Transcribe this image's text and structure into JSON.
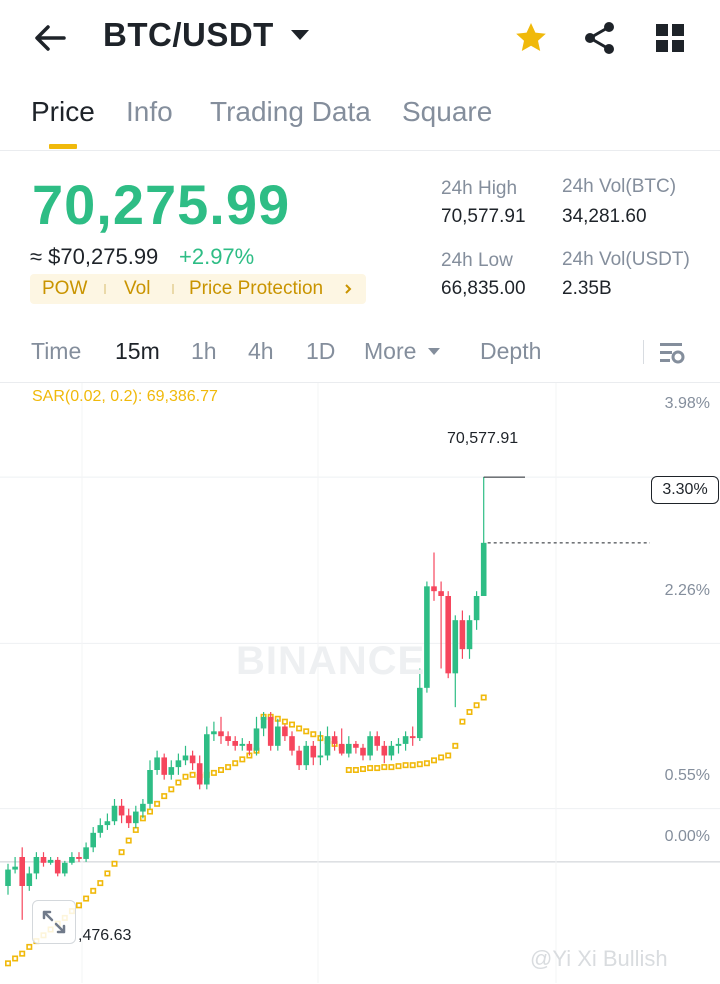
{
  "header": {
    "pair": "BTC/USDT",
    "icons": [
      "back-arrow-icon",
      "dropdown-caret-icon",
      "star-icon",
      "share-icon",
      "grid-icon"
    ],
    "star_color": "#F0B90B"
  },
  "tabs": [
    {
      "label": "Price",
      "active": true
    },
    {
      "label": "Info",
      "active": false
    },
    {
      "label": "Trading Data",
      "active": false
    },
    {
      "label": "Square",
      "active": false
    }
  ],
  "ticker": {
    "last_price": "70,275.99",
    "usd_value": "≈ $70,275.99",
    "change": "+2.97%",
    "tags": [
      "POW",
      "Vol",
      "Price Protection"
    ],
    "high_label": "24h High",
    "high_value": "70,577.91",
    "low_label": "24h Low",
    "low_value": "66,835.00",
    "vol_btc_label": "24h Vol(BTC)",
    "vol_btc_value": "34,281.60",
    "vol_usdt_label": "24h Vol(USDT)",
    "vol_usdt_value": "2.35B"
  },
  "timeframes": [
    {
      "label": "Time",
      "active": false
    },
    {
      "label": "15m",
      "active": true
    },
    {
      "label": "1h",
      "active": false
    },
    {
      "label": "4h",
      "active": false
    },
    {
      "label": "1D",
      "active": false
    },
    {
      "label": "More",
      "active": false
    },
    {
      "label": "Depth",
      "active": false
    }
  ],
  "chart": {
    "indicator": "SAR(0.02, 0.2): 69,386.77",
    "axis_labels": [
      "3.98%",
      "2.26%",
      "0.55%",
      "0.00%"
    ],
    "current_pct": "3.30%",
    "high_marker": "70,577.91",
    "low_marker": ",476.63",
    "watermark": "BINANCE",
    "credit": "@Yi Xi Bullish",
    "colors": {
      "up": "#2EBD85",
      "down": "#F6465D",
      "sar": "#F0B90B"
    }
  },
  "chart_data": {
    "type": "candlestick",
    "title": "",
    "y_unit": "percent",
    "y_ticks": [
      3.98,
      2.26,
      0.55,
      0.0
    ],
    "ylim": [
      -1.15,
      4.85
    ],
    "sar_label": "SAR(0.02, 0.2): 69,386.77",
    "candles": [
      [
        -0.25,
        -0.08,
        -0.34,
        -0.02
      ],
      [
        -0.08,
        -0.05,
        -0.12,
        0.05
      ],
      [
        0.05,
        -0.25,
        -0.6,
        0.15
      ],
      [
        -0.25,
        -0.12,
        -0.3,
        -0.05
      ],
      [
        -0.12,
        0.05,
        -0.18,
        0.1
      ],
      [
        0.05,
        -0.01,
        -0.05,
        0.1
      ],
      [
        -0.01,
        0.02,
        -0.03,
        0.05
      ],
      [
        0.02,
        -0.12,
        -0.15,
        0.05
      ],
      [
        -0.12,
        -0.01,
        -0.15,
        0.01
      ],
      [
        -0.01,
        0.05,
        -0.03,
        0.1
      ],
      [
        0.05,
        0.03,
        0.0,
        0.1
      ],
      [
        0.03,
        0.15,
        0.0,
        0.2
      ],
      [
        0.15,
        0.3,
        0.1,
        0.36
      ],
      [
        0.3,
        0.38,
        0.25,
        0.45
      ],
      [
        0.38,
        0.42,
        0.33,
        0.5
      ],
      [
        0.42,
        0.58,
        0.38,
        0.65
      ],
      [
        0.58,
        0.48,
        0.4,
        0.65
      ],
      [
        0.48,
        0.4,
        0.35,
        0.55
      ],
      [
        0.4,
        0.52,
        0.35,
        0.58
      ],
      [
        0.52,
        0.6,
        0.45,
        0.65
      ],
      [
        0.6,
        0.95,
        0.55,
        1.05
      ],
      [
        0.95,
        1.08,
        0.9,
        1.15
      ],
      [
        1.08,
        0.9,
        0.85,
        1.12
      ],
      [
        0.9,
        0.98,
        0.85,
        1.05
      ],
      [
        0.98,
        1.05,
        0.9,
        1.12
      ],
      [
        1.05,
        1.1,
        1.0,
        1.2
      ],
      [
        1.1,
        1.02,
        0.95,
        1.15
      ],
      [
        1.02,
        0.8,
        0.75,
        1.1
      ],
      [
        0.8,
        1.32,
        0.75,
        1.4
      ],
      [
        1.32,
        1.35,
        1.25,
        1.45
      ],
      [
        1.35,
        1.3,
        1.22,
        1.5
      ],
      [
        1.3,
        1.25,
        1.2,
        1.35
      ],
      [
        1.25,
        1.2,
        1.15,
        1.3
      ],
      [
        1.2,
        1.22,
        1.15,
        1.28
      ],
      [
        1.22,
        1.15,
        1.1,
        1.25
      ],
      [
        1.15,
        1.38,
        1.1,
        1.5
      ],
      [
        1.38,
        1.5,
        1.3,
        1.55
      ],
      [
        1.5,
        1.2,
        1.15,
        1.55
      ],
      [
        1.2,
        1.4,
        1.15,
        1.48
      ],
      [
        1.4,
        1.3,
        1.25,
        1.42
      ],
      [
        1.3,
        1.15,
        1.1,
        1.35
      ],
      [
        1.15,
        1.0,
        0.95,
        1.2
      ],
      [
        1.0,
        1.2,
        0.95,
        1.25
      ],
      [
        1.2,
        1.08,
        1.0,
        1.25
      ],
      [
        1.08,
        1.1,
        1.0,
        1.35
      ],
      [
        1.1,
        1.3,
        1.05,
        1.4
      ],
      [
        1.3,
        1.22,
        1.15,
        1.35
      ],
      [
        1.22,
        1.12,
        1.1,
        1.38
      ],
      [
        1.12,
        1.22,
        1.08,
        1.3
      ],
      [
        1.22,
        1.18,
        1.12,
        1.25
      ],
      [
        1.18,
        1.1,
        1.05,
        1.22
      ],
      [
        1.1,
        1.3,
        1.05,
        1.35
      ],
      [
        1.3,
        1.2,
        1.15,
        1.35
      ],
      [
        1.2,
        1.1,
        1.02,
        1.25
      ],
      [
        1.1,
        1.2,
        1.05,
        1.25
      ],
      [
        1.2,
        1.22,
        1.12,
        1.28
      ],
      [
        1.22,
        1.3,
        1.15,
        1.35
      ],
      [
        1.3,
        1.28,
        1.2,
        1.4
      ],
      [
        1.28,
        1.8,
        1.25,
        2.0
      ],
      [
        1.8,
        2.85,
        1.75,
        2.9
      ],
      [
        2.85,
        2.8,
        2.7,
        3.2
      ],
      [
        2.8,
        2.75,
        2.0,
        2.9
      ],
      [
        2.75,
        1.95,
        1.9,
        2.8
      ],
      [
        1.95,
        2.5,
        1.6,
        2.55
      ],
      [
        2.5,
        2.2,
        2.1,
        2.6
      ],
      [
        2.2,
        2.5,
        2.1,
        2.55
      ],
      [
        2.5,
        2.75,
        2.4,
        2.8
      ],
      [
        2.75,
        3.3,
        2.75,
        3.98
      ]
    ],
    "sar": [
      -1.05,
      -1.0,
      -0.95,
      -0.88,
      -0.82,
      -0.76,
      -0.7,
      -0.64,
      -0.58,
      -0.51,
      -0.45,
      -0.38,
      -0.3,
      -0.22,
      -0.12,
      -0.02,
      0.1,
      0.22,
      0.33,
      0.45,
      0.52,
      0.6,
      0.68,
      0.75,
      0.82,
      0.88,
      0.9,
      0.88,
      0.9,
      0.92,
      0.95,
      0.98,
      1.02,
      1.06,
      1.1,
      1.15,
      1.5,
      1.5,
      1.48,
      1.45,
      1.42,
      1.38,
      1.35,
      1.32,
      1.28,
      1.25,
      1.22,
      1.18,
      0.95,
      0.95,
      0.96,
      0.97,
      0.97,
      0.98,
      0.98,
      0.99,
      1.0,
      1.0,
      1.01,
      1.02,
      1.05,
      1.08,
      1.1,
      1.2,
      1.45,
      1.55,
      1.62,
      1.7
    ]
  }
}
